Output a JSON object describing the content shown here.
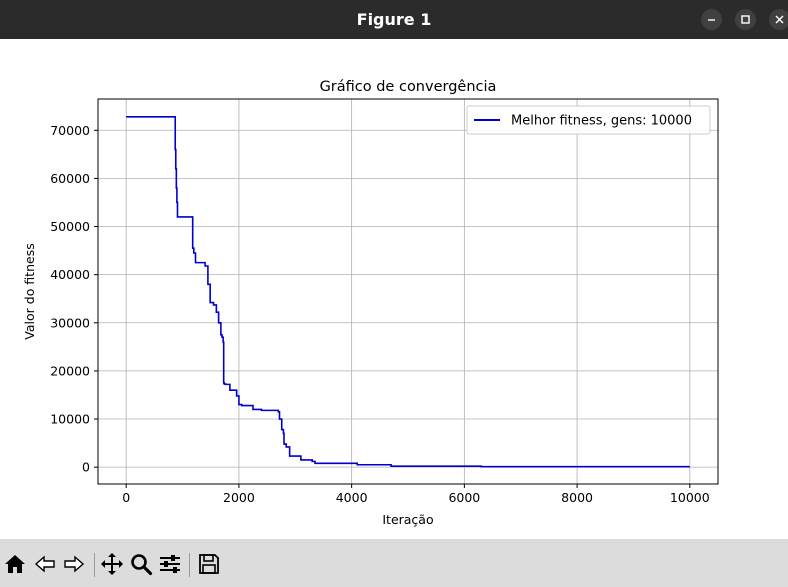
{
  "window": {
    "title": "Figure 1",
    "controls": [
      "minimize-icon",
      "maximize-icon",
      "close-icon"
    ]
  },
  "toolbar": {
    "buttons": [
      "home-icon",
      "back-arrow-icon",
      "forward-arrow-icon",
      "pan-move-icon",
      "zoom-magnifier-icon",
      "configure-subplots-icon",
      "save-floppy-icon"
    ]
  },
  "chart_data": {
    "type": "line",
    "title": "Gráfico de convergência",
    "xlabel": "Iteração",
    "ylabel": "Valor do fitness",
    "xlim": [
      -500,
      10500
    ],
    "ylim": [
      -3500,
      76500
    ],
    "xticks": [
      0,
      2000,
      4000,
      6000,
      8000,
      10000
    ],
    "yticks": [
      0,
      10000,
      20000,
      30000,
      40000,
      50000,
      60000,
      70000
    ],
    "grid": true,
    "legend_position": "top-right",
    "series": [
      {
        "name": "Melhor fitness, gens: 10000",
        "color": "#0000cc",
        "step": true,
        "x": [
          0,
          870,
          880,
          890,
          900,
          910,
          1180,
          1200,
          1230,
          1280,
          1400,
          1450,
          1490,
          1550,
          1600,
          1640,
          1680,
          1700,
          1720,
          1730,
          1740,
          1760,
          1840,
          1960,
          2000,
          2050,
          2250,
          2400,
          2700,
          2720,
          2760,
          2790,
          2800,
          2840,
          2900,
          3100,
          3300,
          3350,
          4100,
          4700,
          6300,
          10000
        ],
        "y": [
          72800,
          66000,
          62000,
          58000,
          55000,
          52000,
          45500,
          44500,
          42500,
          42500,
          41800,
          38000,
          34200,
          33700,
          32200,
          30000,
          27500,
          27000,
          26000,
          17500,
          17300,
          17200,
          16000,
          14800,
          13000,
          12800,
          12000,
          11800,
          11500,
          10000,
          7800,
          7000,
          4800,
          4200,
          2300,
          1500,
          1200,
          800,
          500,
          200,
          100,
          100
        ]
      }
    ]
  }
}
